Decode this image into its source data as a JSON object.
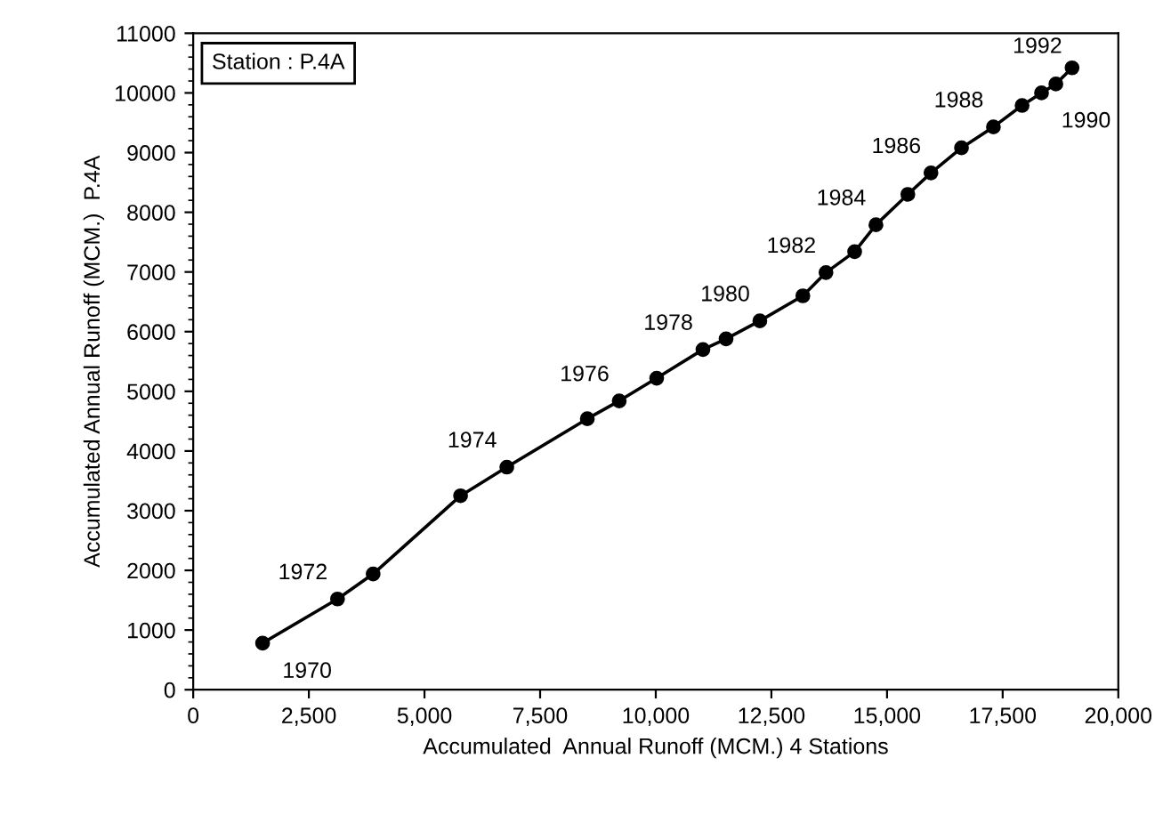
{
  "chart_data": {
    "type": "line",
    "xlabel": "Accumulated  Annual Runoff (MCM.) 4 Stations",
    "ylabel": "Accumulated Annual Runoff (MCM.)  P.4A",
    "series": [
      {
        "color": "#000000",
        "x": [
          1500,
          3120,
          3890,
          5780,
          6780,
          8520,
          9210,
          10020,
          11020,
          11520,
          12250,
          13180,
          13680,
          14300,
          14760,
          15450,
          15950,
          16610,
          17300,
          17920,
          18340,
          18650,
          19000
        ],
        "values": [
          780,
          1520,
          1940,
          3250,
          3730,
          4540,
          4840,
          5220,
          5700,
          5880,
          6180,
          6600,
          6990,
          7340,
          7790,
          8300,
          8660,
          9080,
          9430,
          9790,
          10000,
          10150,
          10420
        ]
      }
    ],
    "annotations": [
      "Station : P.4A",
      {
        "text": "1970",
        "x": 1500,
        "y": 780
      },
      {
        "text": "1972",
        "x": 3120,
        "y": 1520
      },
      {
        "text": "1974",
        "x": 6780,
        "y": 3730
      },
      {
        "text": "1976",
        "x": 9210,
        "y": 4840
      },
      {
        "text": "1978",
        "x": 11020,
        "y": 5700
      },
      {
        "text": "1980",
        "x": 12250,
        "y": 6180
      },
      {
        "text": "1982",
        "x": 13680,
        "y": 6990
      },
      {
        "text": "1984",
        "x": 14760,
        "y": 7790
      },
      {
        "text": "1986",
        "x": 15950,
        "y": 8660
      },
      {
        "text": "1988",
        "x": 17300,
        "y": 9430
      },
      {
        "text": "1990",
        "x": 18340,
        "y": 10000
      },
      {
        "text": "1992",
        "x": 19000,
        "y": 10420
      }
    ],
    "xlim": [
      0,
      20000
    ],
    "xticks": [
      0,
      {
        "value": 2500,
        "label": "2,500"
      },
      {
        "value": 5000,
        "label": "5,000"
      },
      {
        "value": 7500,
        "label": "7,500"
      },
      {
        "value": 10000,
        "label": "10,000"
      },
      {
        "value": 12500,
        "label": "12,500"
      },
      {
        "value": 15000,
        "label": "15,000"
      },
      {
        "value": 17500,
        "label": "17,500"
      },
      {
        "value": 20000,
        "label": "20,000"
      }
    ],
    "ylim": [
      0,
      11000
    ],
    "yticks": [
      0,
      1000,
      2000,
      3000,
      4000,
      5000,
      6000,
      7000,
      8000,
      9000,
      10000,
      11000
    ],
    "grid": false,
    "legend": false,
    "marker": "circle",
    "line_style": "solid"
  }
}
